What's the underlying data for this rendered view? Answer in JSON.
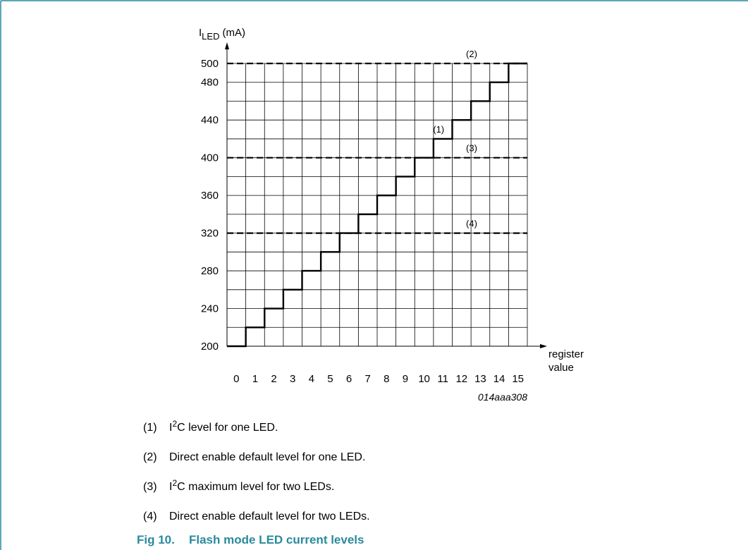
{
  "chart_data": {
    "type": "step",
    "y_label_parts": [
      "I",
      "LED",
      "(mA)"
    ],
    "x_label_lines": [
      "register",
      "value"
    ],
    "categories": [
      "0",
      "1",
      "2",
      "3",
      "4",
      "5",
      "6",
      "7",
      "8",
      "9",
      "10",
      "11",
      "12",
      "13",
      "14",
      "15"
    ],
    "values": [
      200,
      220,
      240,
      260,
      280,
      300,
      320,
      340,
      360,
      380,
      400,
      420,
      440,
      460,
      480,
      500
    ],
    "ylim": [
      200,
      500
    ],
    "yticks": [
      200,
      240,
      280,
      320,
      360,
      400,
      440,
      480,
      500
    ],
    "minor_yticks": [
      220,
      260,
      300,
      340,
      380,
      420,
      460
    ],
    "grid": true,
    "color": "#000000",
    "reference_lines": [
      {
        "value": 500,
        "label": "(2)"
      },
      {
        "value": 400,
        "label": "(3)"
      },
      {
        "value": 320,
        "label": "(4)"
      }
    ],
    "annotation": "(1)",
    "figure_id": "014aaa308"
  },
  "notes": [
    {
      "marker": "(1)",
      "parts": [
        "I",
        "2",
        "C level for one LED."
      ]
    },
    {
      "marker": "(2)",
      "parts": [
        "Direct enable default level for one LED."
      ]
    },
    {
      "marker": "(3)",
      "parts": [
        "I",
        "2",
        "C maximum level for two LEDs."
      ]
    },
    {
      "marker": "(4)",
      "parts": [
        "Direct enable default level for two LEDs."
      ]
    }
  ],
  "caption": {
    "number": "Fig 10.",
    "title": "Flash mode LED current levels"
  }
}
